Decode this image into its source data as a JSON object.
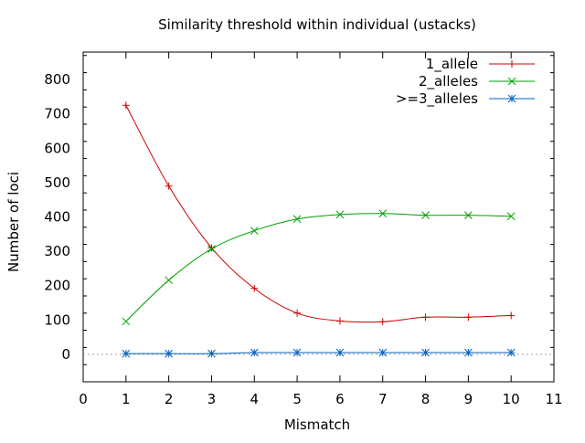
{
  "chart_data": {
    "type": "line",
    "title": "Similarity threshold within individual (ustacks)",
    "xlabel": "Mismatch",
    "ylabel": "Number of loci",
    "xlim": [
      0,
      11
    ],
    "ylim": [
      -80,
      880
    ],
    "xticks": [
      0,
      1,
      2,
      3,
      4,
      5,
      6,
      7,
      8,
      9,
      10,
      11
    ],
    "yticks": [
      0,
      100,
      200,
      300,
      400,
      500,
      600,
      700,
      800
    ],
    "zero_line": true,
    "grid": false,
    "legend_position": "top-right",
    "x": [
      1,
      2,
      3,
      4,
      5,
      6,
      7,
      8,
      9,
      10
    ],
    "series": [
      {
        "name": "1_allele",
        "color": "#cc0000",
        "marker": "plus",
        "values": [
          725,
          490,
          310,
          192,
          120,
          97,
          95,
          108,
          108,
          113
        ]
      },
      {
        "name": "2_alleles",
        "color": "#00a000",
        "marker": "cross",
        "values": [
          96,
          216,
          307,
          360,
          394,
          407,
          410,
          405,
          405,
          402
        ]
      },
      {
        "name": ">=3_alleles",
        "color": "#0060c0",
        "marker": "star",
        "values": [
          2,
          2,
          2,
          5,
          5,
          5,
          5,
          5,
          5,
          5
        ]
      }
    ]
  }
}
